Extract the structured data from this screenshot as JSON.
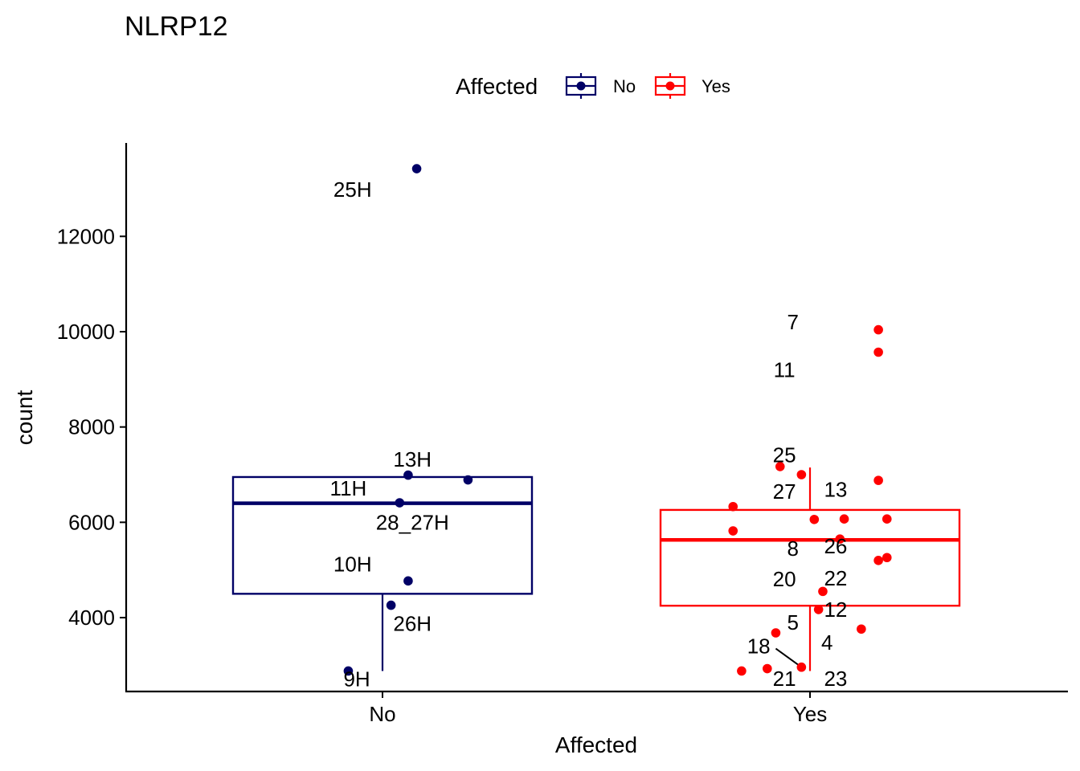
{
  "chart_data": {
    "type": "boxplot",
    "title": "NLRP12",
    "xlabel": "Affected",
    "ylabel": "count",
    "categories": [
      "No",
      "Yes"
    ],
    "yticks": [
      4000,
      6000,
      8000,
      10000,
      12000
    ],
    "ytick_labels": [
      "4000",
      "6000",
      "8000",
      "10000",
      "12000"
    ],
    "ylim": [
      2450,
      13960
    ],
    "legend": {
      "title": "Affected",
      "placement": "top",
      "entries": [
        {
          "label": "No",
          "color": "#000066"
        },
        {
          "label": "Yes",
          "color": "#FF0000"
        }
      ]
    },
    "grid": false,
    "series": [
      {
        "name": "No",
        "color": "#000066",
        "box": {
          "whisker_low": 2880,
          "q1": 4500,
          "median": 6400,
          "q3": 6950,
          "whisker_high": 6950
        },
        "points": [
          {
            "x": 0.08,
            "y": 13420
          },
          {
            "x": 0.06,
            "y": 6990
          },
          {
            "x": 0.2,
            "y": 6890
          },
          {
            "x": 0.04,
            "y": 6410
          },
          {
            "x": 0.06,
            "y": 4770
          },
          {
            "x": 0.02,
            "y": 4260
          },
          {
            "x": -0.08,
            "y": 2880
          }
        ],
        "labels": [
          {
            "text": "25H",
            "x": -0.07,
            "y": 12980
          },
          {
            "text": "13H",
            "x": 0.07,
            "y": 7320
          },
          {
            "text": "11H",
            "x": -0.08,
            "y": 6710
          },
          {
            "text": "28_27H",
            "x": 0.07,
            "y": 6000
          },
          {
            "text": "10H",
            "x": -0.07,
            "y": 5120
          },
          {
            "text": "26H",
            "x": 0.07,
            "y": 3870
          },
          {
            "text": "9H",
            "x": -0.06,
            "y": 2710
          }
        ]
      },
      {
        "name": "Yes",
        "color": "#FF0000",
        "box": {
          "whisker_low": 2880,
          "q1": 4250,
          "median": 5630,
          "q3": 6260,
          "whisker_high": 7150
        },
        "points": [
          {
            "x": 0.16,
            "y": 10040
          },
          {
            "x": 0.16,
            "y": 9570
          },
          {
            "x": -0.07,
            "y": 7170
          },
          {
            "x": -0.02,
            "y": 7000
          },
          {
            "x": 0.16,
            "y": 6880
          },
          {
            "x": -0.18,
            "y": 6330
          },
          {
            "x": 0.01,
            "y": 6060
          },
          {
            "x": 0.08,
            "y": 6070
          },
          {
            "x": 0.18,
            "y": 6070
          },
          {
            "x": -0.18,
            "y": 5820
          },
          {
            "x": 0.07,
            "y": 5650
          },
          {
            "x": 0.18,
            "y": 5260
          },
          {
            "x": 0.16,
            "y": 5200
          },
          {
            "x": 0.03,
            "y": 4550
          },
          {
            "x": 0.02,
            "y": 4170
          },
          {
            "x": 0.12,
            "y": 3760
          },
          {
            "x": -0.08,
            "y": 3680
          },
          {
            "x": -0.02,
            "y": 2960
          },
          {
            "x": -0.1,
            "y": 2930
          },
          {
            "x": -0.16,
            "y": 2880
          }
        ],
        "labels": [
          {
            "text": "7",
            "x": -0.04,
            "y": 10200
          },
          {
            "text": "11",
            "x": -0.06,
            "y": 9200
          },
          {
            "text": "25",
            "x": -0.06,
            "y": 7410
          },
          {
            "text": "27",
            "x": -0.06,
            "y": 6650
          },
          {
            "text": "13",
            "x": 0.06,
            "y": 6690
          },
          {
            "text": "8",
            "x": -0.04,
            "y": 5450
          },
          {
            "text": "26",
            "x": 0.06,
            "y": 5500
          },
          {
            "text": "20",
            "x": -0.06,
            "y": 4810
          },
          {
            "text": "22",
            "x": 0.06,
            "y": 4830
          },
          {
            "text": "12",
            "x": 0.06,
            "y": 4170
          },
          {
            "text": "5",
            "x": -0.04,
            "y": 3900
          },
          {
            "text": "4",
            "x": 0.04,
            "y": 3480
          },
          {
            "text": "18",
            "x": -0.12,
            "y": 3400
          },
          {
            "text": "21",
            "x": -0.06,
            "y": 2720
          },
          {
            "text": "23",
            "x": 0.06,
            "y": 2720
          }
        ],
        "leader_line": {
          "label": "18",
          "from": {
            "x": -0.08,
            "y": 3350
          },
          "to": {
            "x": -0.02,
            "y": 2960
          }
        }
      }
    ]
  }
}
